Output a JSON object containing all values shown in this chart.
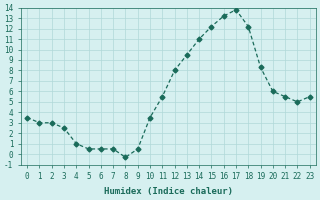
{
  "x": [
    0,
    1,
    2,
    3,
    4,
    5,
    6,
    7,
    8,
    9,
    10,
    11,
    12,
    13,
    14,
    15,
    16,
    17,
    18,
    19,
    20,
    21,
    22,
    23
  ],
  "y": [
    3.5,
    3.0,
    3.0,
    2.5,
    1.0,
    0.5,
    0.5,
    0.5,
    -0.3,
    0.5,
    3.5,
    5.5,
    8.0,
    9.5,
    11.0,
    12.2,
    13.2,
    13.8,
    12.2,
    8.3,
    6.0,
    5.5,
    5.0,
    5.5
  ],
  "xlabel": "Humidex (Indice chaleur)",
  "ylabel": "",
  "ylim": [
    -1,
    14
  ],
  "xlim": [
    -0.5,
    23.5
  ],
  "line_color": "#1a6b5a",
  "marker": "D",
  "marker_size": 2.5,
  "bg_color": "#d6f0f0",
  "grid_color": "#b0d8d8",
  "tick_label_color": "#1a6b5a",
  "xlabel_color": "#1a6b5a",
  "font_family": "monospace"
}
